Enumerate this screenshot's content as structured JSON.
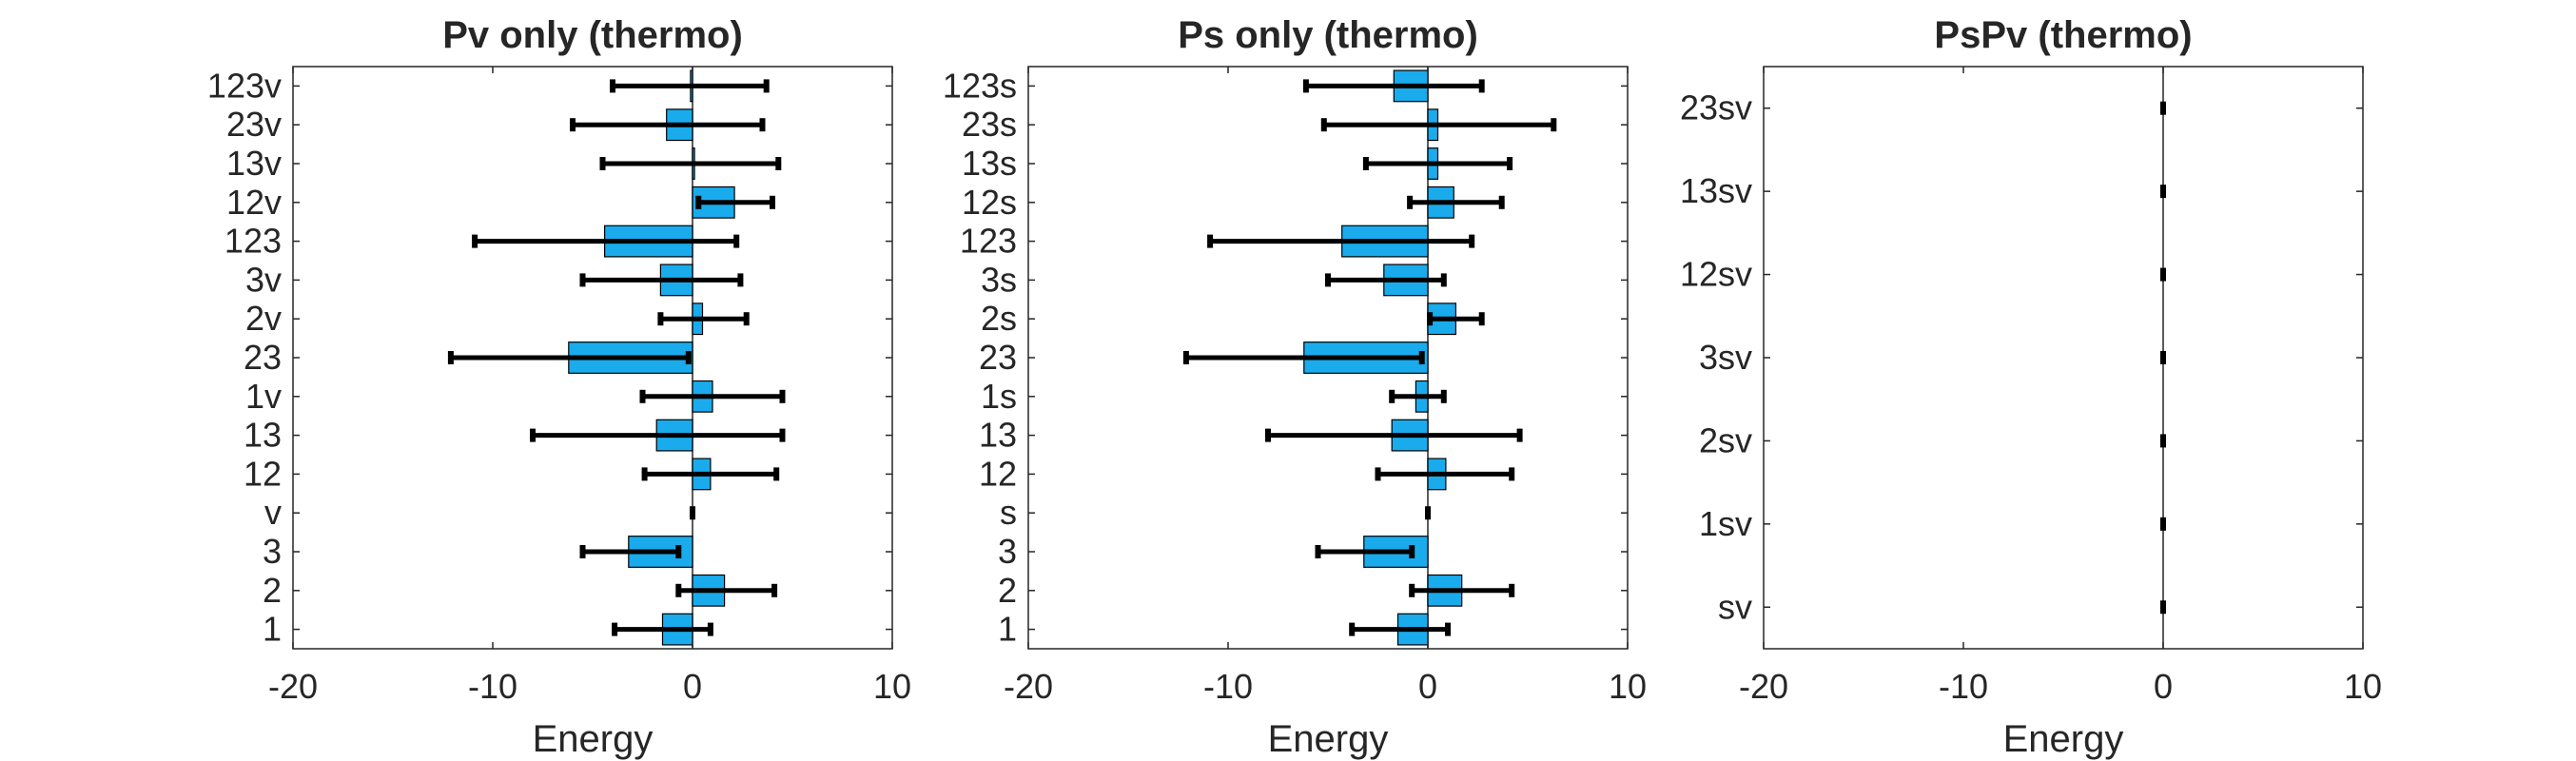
{
  "chart_data": [
    {
      "type": "bar",
      "orientation": "horizontal",
      "title": "Pv only (thermo)",
      "xlabel": "Energy",
      "ylabel": "",
      "xlim": [
        -20,
        10
      ],
      "xticks": [
        -20,
        -10,
        0,
        10
      ],
      "grid": false,
      "bar_color": "#1AABED",
      "categories": [
        "1",
        "2",
        "3",
        "v",
        "12",
        "13",
        "1v",
        "23",
        "2v",
        "3v",
        "123",
        "12v",
        "13v",
        "23v",
        "123v"
      ],
      "values": [
        -1.5,
        1.6,
        -3.2,
        0,
        0.9,
        -1.8,
        1.0,
        -6.2,
        0.5,
        -1.6,
        -4.4,
        2.1,
        0.1,
        -1.3,
        -0.1
      ],
      "error_low": [
        -3.9,
        -0.7,
        -5.5,
        0,
        -2.4,
        -8.0,
        -2.5,
        -12.1,
        -1.6,
        -5.5,
        -10.9,
        0.3,
        -4.5,
        -6.0,
        -4.0
      ],
      "error_high": [
        0.9,
        4.1,
        -0.7,
        0,
        4.2,
        4.5,
        4.5,
        -0.2,
        2.7,
        2.4,
        2.2,
        4.0,
        4.3,
        3.5,
        3.7
      ]
    },
    {
      "type": "bar",
      "orientation": "horizontal",
      "title": "Ps only (thermo)",
      "xlabel": "Energy",
      "ylabel": "",
      "xlim": [
        -20,
        10
      ],
      "xticks": [
        -20,
        -10,
        0,
        10
      ],
      "grid": false,
      "bar_color": "#1AABED",
      "categories": [
        "1",
        "2",
        "3",
        "s",
        "12",
        "13",
        "1s",
        "23",
        "2s",
        "3s",
        "123",
        "12s",
        "13s",
        "23s",
        "123s"
      ],
      "values": [
        -1.5,
        1.7,
        -3.2,
        0,
        0.9,
        -1.8,
        -0.6,
        -6.2,
        1.4,
        -2.2,
        -4.3,
        1.3,
        0.5,
        0.5,
        -1.7
      ],
      "error_low": [
        -3.8,
        -0.8,
        -5.5,
        0,
        -2.5,
        -8.0,
        -1.8,
        -12.1,
        0.1,
        -5.0,
        -10.9,
        -0.9,
        -3.1,
        -5.2,
        -6.1
      ],
      "error_high": [
        1.0,
        4.2,
        -0.8,
        0,
        4.2,
        4.6,
        0.8,
        -0.3,
        2.7,
        0.8,
        2.2,
        3.7,
        4.1,
        6.3,
        2.7
      ]
    },
    {
      "type": "bar",
      "orientation": "horizontal",
      "title": "PsPv (thermo)",
      "xlabel": "Energy",
      "ylabel": "",
      "xlim": [
        -20,
        10
      ],
      "xticks": [
        -20,
        -10,
        0,
        10
      ],
      "grid": false,
      "bar_color": "#1AABED",
      "categories": [
        "sv",
        "1sv",
        "2sv",
        "3sv",
        "12sv",
        "13sv",
        "23sv"
      ],
      "values": [
        0,
        0,
        0,
        0,
        0,
        0,
        0
      ],
      "error_low": [
        0,
        0,
        0,
        0,
        0,
        0,
        0
      ],
      "error_high": [
        0,
        0,
        0,
        0,
        0,
        0,
        0
      ]
    }
  ]
}
